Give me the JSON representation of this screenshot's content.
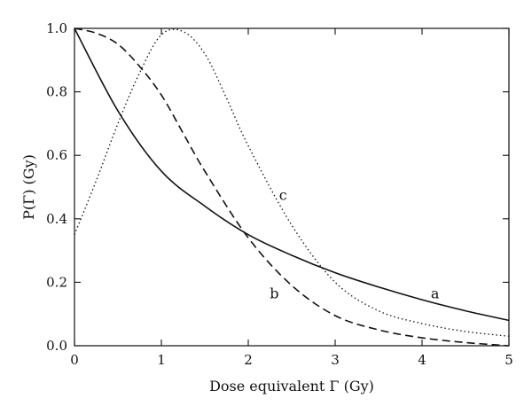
{
  "chart_data": {
    "type": "line",
    "title": "",
    "xlabel": "Dose equivalent Γ (Gy)",
    "ylabel": "P(Γ) (Gy)",
    "xlim": [
      0,
      5
    ],
    "ylim": [
      0,
      1.0
    ],
    "x_ticks": [
      "0",
      "1",
      "2",
      "3",
      "4",
      "5"
    ],
    "y_ticks": [
      "0.0",
      "0.2",
      "0.4",
      "0.6",
      "0.8",
      "1.0"
    ],
    "grid": false,
    "legend": "none",
    "series": [
      {
        "name": "a",
        "style": "solid",
        "x": [
          0,
          0.5,
          1,
          1.5,
          2,
          2.5,
          3,
          3.5,
          4,
          4.5,
          5
        ],
        "y": [
          1.0,
          0.74,
          0.55,
          0.44,
          0.35,
          0.285,
          0.23,
          0.185,
          0.145,
          0.11,
          0.08
        ]
      },
      {
        "name": "b",
        "style": "dashed",
        "x": [
          0,
          0.25,
          0.5,
          0.75,
          1,
          1.25,
          1.5,
          2,
          2.5,
          3,
          3.5,
          4,
          4.5,
          5
        ],
        "y": [
          1.0,
          0.985,
          0.95,
          0.88,
          0.79,
          0.67,
          0.55,
          0.34,
          0.19,
          0.095,
          0.05,
          0.025,
          0.01,
          0.0
        ]
      },
      {
        "name": "c",
        "style": "dotted",
        "x": [
          0,
          0.25,
          0.5,
          0.75,
          1,
          1.25,
          1.5,
          1.75,
          2,
          2.5,
          3,
          3.5,
          4,
          4.5,
          5
        ],
        "y": [
          0.35,
          0.52,
          0.7,
          0.86,
          0.98,
          0.99,
          0.92,
          0.78,
          0.63,
          0.38,
          0.2,
          0.11,
          0.07,
          0.045,
          0.03
        ]
      }
    ],
    "annotations": [
      {
        "text": "a",
        "x": 4.15,
        "y": 0.15
      },
      {
        "text": "b",
        "x": 2.3,
        "y": 0.15
      },
      {
        "text": "c",
        "x": 2.4,
        "y": 0.46
      }
    ]
  }
}
